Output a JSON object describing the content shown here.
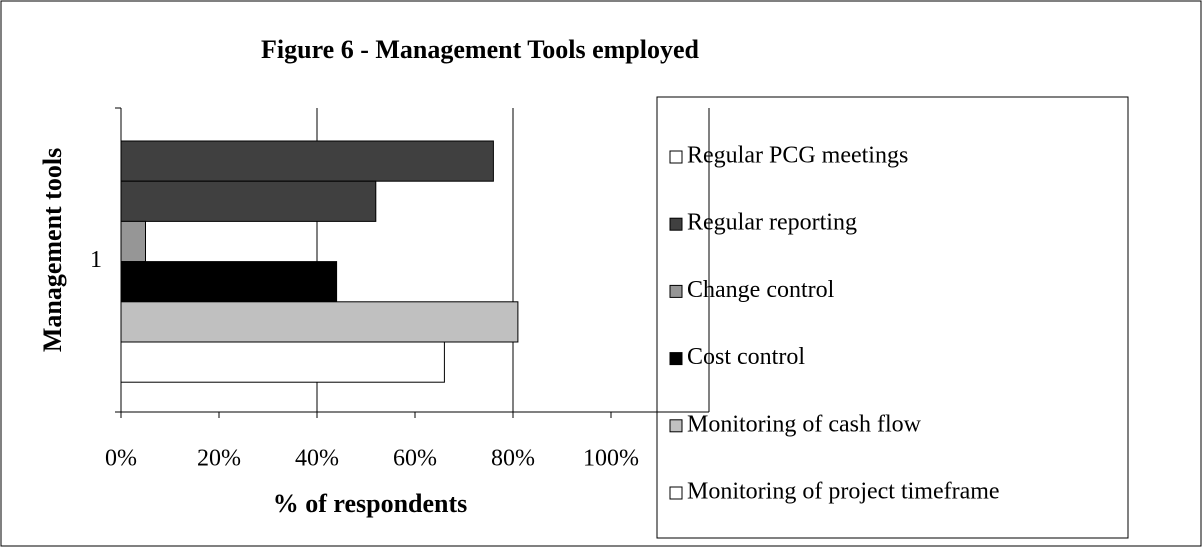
{
  "chart_data": {
    "type": "bar",
    "orientation": "horizontal",
    "title": "Figure 6 - Management Tools employed",
    "xlabel": "% of respondents",
    "ylabel": "Management tools",
    "categories": [
      "1"
    ],
    "series": [
      {
        "name": "Regular PCG meetings",
        "color": "#404040",
        "legend_color": "#ffffff",
        "values": [
          76
        ]
      },
      {
        "name": "Regular reporting",
        "color": "#404040",
        "values": [
          52
        ]
      },
      {
        "name": "Change control",
        "color": "#969696",
        "values": [
          5
        ]
      },
      {
        "name": "Cost control",
        "color": "#000000",
        "values": [
          44
        ]
      },
      {
        "name": "Monitoring of cash flow",
        "color": "#c0c0c0",
        "values": [
          81
        ]
      },
      {
        "name": "Monitoring of project timeframe",
        "color": "#ffffff",
        "values": [
          66
        ]
      }
    ],
    "xlim": [
      0,
      120
    ],
    "xticks": [
      {
        "value": 0,
        "label": "0%"
      },
      {
        "value": 20,
        "label": "20%"
      },
      {
        "value": 40,
        "label": "40%"
      },
      {
        "value": 60,
        "label": "60%"
      },
      {
        "value": 80,
        "label": "80%"
      },
      {
        "value": 100,
        "label": "100%"
      }
    ],
    "xgrid": [
      40,
      80,
      120
    ],
    "legend": "right"
  }
}
